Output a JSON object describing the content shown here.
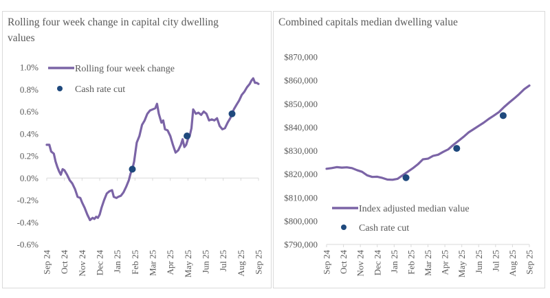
{
  "colors": {
    "line": "#7b64a6",
    "cut": "#1f497d",
    "axis": "#d9d9d9",
    "text": "#595959"
  },
  "chart_data": [
    {
      "type": "line",
      "title": "Rolling four week change in capital city dwelling values",
      "xlabel": "",
      "ylabel": "",
      "categories": [
        "Sep 24",
        "Oct 24",
        "Nov 24",
        "Dec 24",
        "Jan 25",
        "Feb 25",
        "Mar 25",
        "Apr 25",
        "May 25",
        "Jun 25",
        "Jul 25",
        "Aug 25",
        "Sep 25"
      ],
      "y_ticks": [
        "1.0%",
        "0.8%",
        "0.6%",
        "0.4%",
        "0.2%",
        "0.0%",
        "-0.2%",
        "-0.4%",
        "-0.6%"
      ],
      "ylim": [
        -0.6,
        1.0
      ],
      "x_unit": "months since Sep 24",
      "legend": {
        "position": "top-left",
        "line_label": "Rolling four week change",
        "marker_label": "Cash rate cut"
      },
      "series": [
        {
          "name": "Rolling four week change",
          "x": [
            0,
            0.15,
            0.25,
            0.4,
            0.5,
            0.6,
            0.7,
            0.8,
            0.9,
            1.0,
            1.15,
            1.3,
            1.45,
            1.6,
            1.75,
            1.9,
            2.0,
            2.15,
            2.3,
            2.45,
            2.6,
            2.7,
            2.8,
            2.9,
            3.0,
            3.1,
            3.25,
            3.4,
            3.55,
            3.7,
            3.8,
            3.95,
            4.05,
            4.2,
            4.35,
            4.5,
            4.65,
            4.75,
            4.85,
            4.95,
            5.1,
            5.25,
            5.4,
            5.55,
            5.7,
            5.85,
            6.0,
            6.15,
            6.25,
            6.35,
            6.5,
            6.6,
            6.7,
            6.85,
            7.0,
            7.15,
            7.3,
            7.45,
            7.6,
            7.7,
            7.8,
            7.9,
            8.0,
            8.1,
            8.2,
            8.3,
            8.45,
            8.6,
            8.75,
            8.9,
            9.05,
            9.2,
            9.35,
            9.5,
            9.65,
            9.8,
            9.95,
            10.1,
            10.25,
            10.4,
            10.5,
            10.6,
            10.75,
            10.9,
            11.05,
            11.2,
            11.35,
            11.5,
            11.6,
            11.7,
            11.8,
            11.9,
            12.0
          ],
          "values": [
            0.3,
            0.3,
            0.24,
            0.22,
            0.15,
            0.1,
            0.06,
            0.03,
            0.08,
            0.07,
            0.03,
            -0.02,
            -0.05,
            -0.1,
            -0.17,
            -0.18,
            -0.22,
            -0.27,
            -0.33,
            -0.38,
            -0.36,
            -0.37,
            -0.35,
            -0.36,
            -0.33,
            -0.27,
            -0.2,
            -0.14,
            -0.12,
            -0.11,
            -0.17,
            -0.18,
            -0.17,
            -0.16,
            -0.13,
            -0.08,
            -0.02,
            0.04,
            0.08,
            0.15,
            0.32,
            0.38,
            0.48,
            0.52,
            0.58,
            0.61,
            0.62,
            0.63,
            0.67,
            0.58,
            0.5,
            0.52,
            0.44,
            0.43,
            0.38,
            0.3,
            0.23,
            0.25,
            0.3,
            0.35,
            0.28,
            0.3,
            0.35,
            0.38,
            0.45,
            0.62,
            0.58,
            0.59,
            0.57,
            0.6,
            0.58,
            0.52,
            0.53,
            0.52,
            0.54,
            0.47,
            0.44,
            0.45,
            0.5,
            0.54,
            0.58,
            0.62,
            0.66,
            0.7,
            0.75,
            0.78,
            0.82,
            0.85,
            0.88,
            0.9,
            0.86,
            0.86,
            0.85
          ]
        },
        {
          "name": "Cash rate cut",
          "x": [
            4.85,
            7.95,
            10.5
          ],
          "values": [
            0.08,
            0.38,
            0.58
          ]
        }
      ]
    },
    {
      "type": "line",
      "title": "Combined capitals median dwelling value",
      "xlabel": "",
      "ylabel": "",
      "categories": [
        "Sep 24",
        "Oct 24",
        "Nov 24",
        "Dec 24",
        "Jan 25",
        "Feb 25",
        "Mar 25",
        "Apr 25",
        "May 25",
        "Jun 25",
        "Jul 25",
        "Aug 25",
        "Sep 25"
      ],
      "y_ticks": [
        "$870,000",
        "$860,000",
        "$850,000",
        "$840,000",
        "$830,000",
        "$820,000",
        "$810,000",
        "$800,000",
        "$790,000"
      ],
      "ylim": [
        790000,
        870000
      ],
      "x_unit": "months since Sep 24",
      "legend": {
        "position": "bottom-left",
        "line_label": "Index adjusted median value",
        "marker_label": "Cash rate cut"
      },
      "series": [
        {
          "name": "Index adjusted median value",
          "x": [
            0,
            0.3,
            0.6,
            0.9,
            1.2,
            1.5,
            1.8,
            2.1,
            2.4,
            2.7,
            3.0,
            3.3,
            3.6,
            3.9,
            4.2,
            4.5,
            4.8,
            5.1,
            5.4,
            5.7,
            6.0,
            6.3,
            6.6,
            6.9,
            7.2,
            7.5,
            7.8,
            8.1,
            8.4,
            8.7,
            9.0,
            9.3,
            9.6,
            9.9,
            10.2,
            10.5,
            10.8,
            11.1,
            11.4,
            11.7,
            12.0
          ],
          "values": [
            822300,
            822600,
            823000,
            822800,
            822900,
            822600,
            821700,
            821000,
            819500,
            818800,
            818900,
            818400,
            817700,
            817600,
            818000,
            819500,
            821000,
            822500,
            824200,
            826300,
            826600,
            827800,
            828300,
            829500,
            830600,
            832500,
            834200,
            835900,
            837800,
            839200,
            840600,
            842000,
            843600,
            845000,
            846500,
            848600,
            850500,
            852300,
            854200,
            856300,
            857800
          ]
        },
        {
          "name": "Cash rate cut",
          "x": [
            4.7,
            7.7,
            10.45
          ],
          "values": [
            818500,
            831000,
            845000
          ]
        }
      ]
    }
  ]
}
